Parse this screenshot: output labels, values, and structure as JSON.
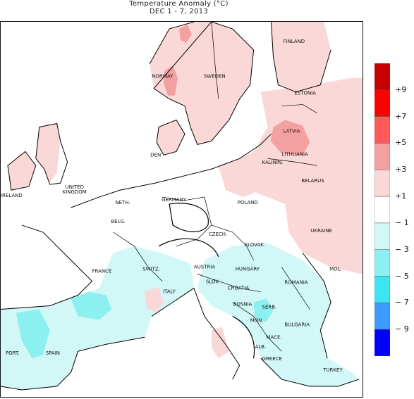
{
  "title": "Temperature Anomaly (°C)",
  "subtitle": "DEC 1 - 7, 2013",
  "colors": {
    "pos9": "#c80000",
    "pos7": "#ff0000",
    "pos5": "#ff5a5a",
    "pos3": "#f4a0a0",
    "pos1": "#fbd8d8",
    "zero": "#ffffff",
    "neg1": "#d2f7f7",
    "neg3": "#8cf0f0",
    "neg5": "#3ce6f0",
    "neg7": "#3c9bff",
    "neg9": "#0000ff",
    "water": "#ffffff",
    "line": "#000000"
  },
  "colorbar": {
    "labels": [
      "+9",
      "+7",
      "+5",
      "+3",
      "+1",
      "− 1",
      "− 3",
      "− 5",
      "− 7",
      "− 9"
    ]
  },
  "countries": [
    "FINLAND",
    "NORWAY",
    "SWEDEN",
    "ESTONIA",
    "LATVIA",
    "LITHUANIA",
    "DEN",
    "KALININ.",
    "BELARUS",
    "UNITED",
    "KINGDOM",
    "IRELAND",
    "NETH.",
    "GERMANY",
    "POLAND",
    "BELG.",
    "CZECH.",
    "SLOVAK.",
    "UKRAINE",
    "FRANCE",
    "SWITZ.",
    "AUSTRIA",
    "HUNGARY",
    "MOL.",
    "SLOV.",
    "CROATIA",
    "ROMANIA",
    "ITALY",
    "BOSNIA",
    "SERB.",
    "MON.",
    "BULGARIA",
    "MACE.",
    "ALB.",
    "GREECE",
    "TURKEY",
    "PORT.",
    "SPAIN"
  ]
}
